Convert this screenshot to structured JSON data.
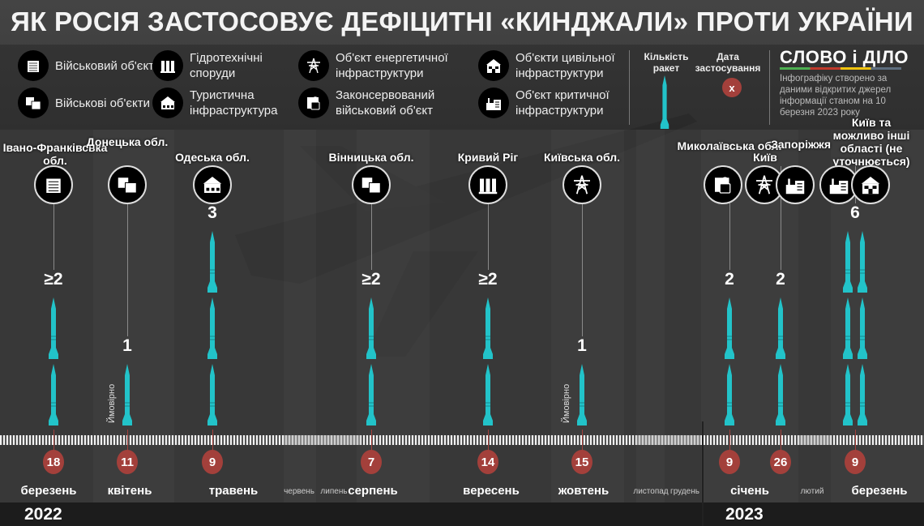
{
  "title": "ЯК РОСІЯ ЗАСТОСОВУЄ ДЕФІЦИТНІ «КИНДЖАЛИ» ПРОТИ УКРАЇНИ",
  "legend": [
    {
      "icon": "military-object-icon",
      "label": "Військовий об'єкт"
    },
    {
      "icon": "military-objects-icon",
      "label": "Військові об'єкти"
    },
    {
      "icon": "hydro-structures-icon",
      "label": "Гідротехнічні споруди"
    },
    {
      "icon": "tourist-infrastructure-icon",
      "label": "Туристична інфраструктура"
    },
    {
      "icon": "energy-infrastructure-icon",
      "label": "Об'єкт енергетичної інфраструктури"
    },
    {
      "icon": "mothballed-military-icon",
      "label": "Законсервований військовий об'єкт"
    },
    {
      "icon": "civil-infrastructure-icon",
      "label": "Об'єкти цивільної інфраструктури"
    },
    {
      "icon": "critical-infrastructure-icon",
      "label": "Об'єкт критичної інфраструктури"
    }
  ],
  "key": {
    "missiles_label": "Кількість ракет",
    "date_label": "Дата застосування",
    "date_sample": "x"
  },
  "logo": "СЛОВО і ДІЛО",
  "source_note": "Інфографіку створено за даними відкритих джерел інформації станом на 10 березня 2023 року",
  "probable_label": "Ймовірно",
  "colors": {
    "missile": "#22c3c9",
    "date": "#a3403b",
    "background": "#3a3a3a"
  },
  "events": [
    {
      "date": "18",
      "count_label": "≥2",
      "missiles": 2,
      "targets": [
        {
          "label": "Івано-Франківська обл.",
          "icon": "military-object-icon"
        }
      ]
    },
    {
      "date": "11",
      "count_label": "1",
      "missiles": 1,
      "probable": true,
      "targets": [
        {
          "label": "Донецька обл.",
          "icon": "military-objects-icon"
        }
      ]
    },
    {
      "date": "9",
      "count_label": "3",
      "missiles": 3,
      "targets": [
        {
          "label": "Одеська обл.",
          "icon": "tourist-infrastructure-icon"
        }
      ]
    },
    {
      "date": "7",
      "count_label": "≥2",
      "missiles": 2,
      "targets": [
        {
          "label": "Вінницька обл.",
          "icon": "military-objects-icon"
        }
      ]
    },
    {
      "date": "14",
      "count_label": "≥2",
      "missiles": 2,
      "targets": [
        {
          "label": "Кривий Ріг",
          "icon": "hydro-structures-icon"
        }
      ]
    },
    {
      "date": "15",
      "count_label": "1",
      "missiles": 1,
      "probable": true,
      "targets": [
        {
          "label": "Київська обл.",
          "icon": "energy-infrastructure-icon"
        }
      ]
    },
    {
      "date": "9",
      "count_label": "2",
      "missiles": 2,
      "targets": [
        {
          "label": "Миколаївська обл.",
          "icon": "mothballed-military-icon"
        }
      ]
    },
    {
      "date": "26",
      "count_label": "2",
      "missiles": 2,
      "targets": [
        {
          "label": "Київ",
          "icon": "energy-infrastructure-icon"
        },
        {
          "label": "Запоріжжя",
          "icon": "critical-infrastructure-icon"
        }
      ]
    },
    {
      "date": "9",
      "count_label": "6",
      "missiles": 6,
      "targets": [
        {
          "label": "Київ та можливо інші області (не уточнюється)",
          "icon": "critical-infrastructure-icon"
        },
        {
          "label": "",
          "icon": "civil-infrastructure-icon"
        }
      ]
    }
  ],
  "months": [
    "березень",
    "квітень",
    "травень",
    "червень",
    "липень",
    "серпень",
    "вересень",
    "жовтень",
    "листопад",
    "грудень",
    "січень",
    "лютий",
    "березень"
  ],
  "years": [
    "2022",
    "2023"
  ]
}
